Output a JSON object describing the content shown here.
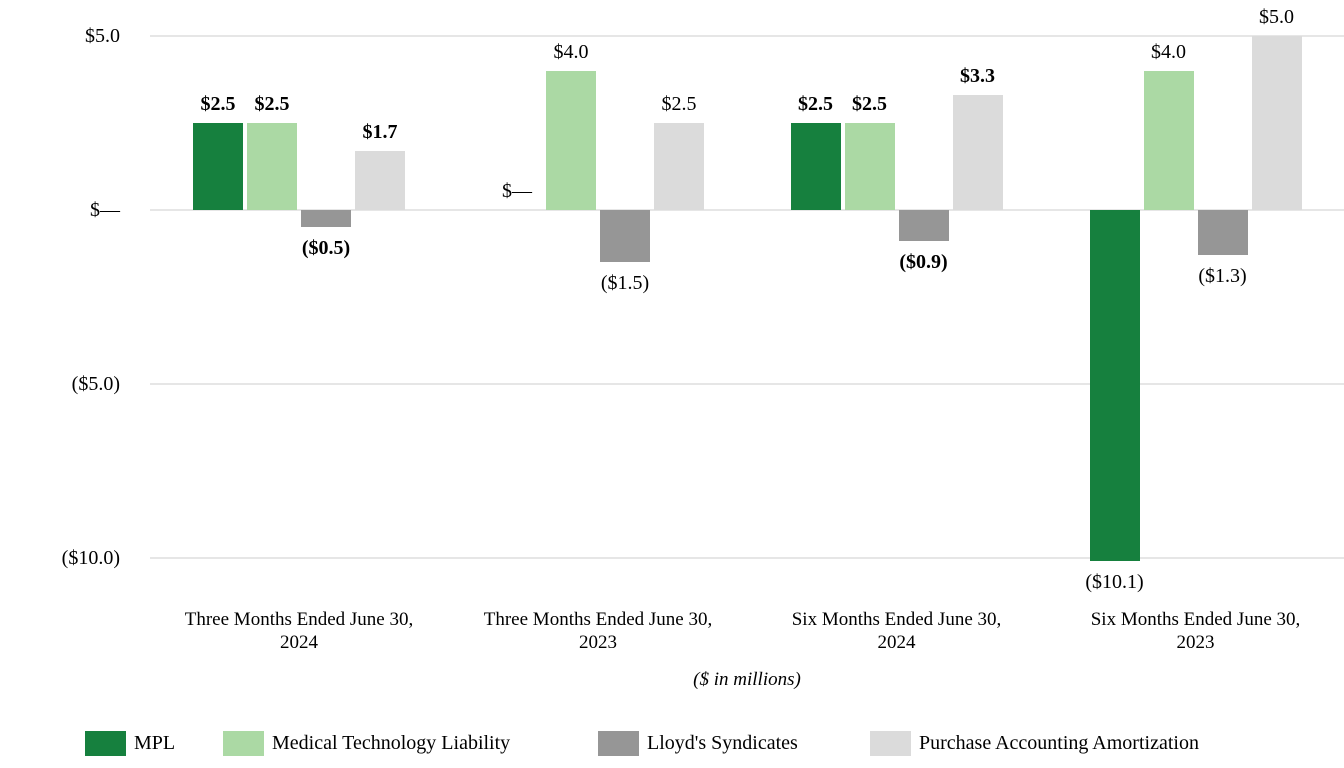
{
  "chart_data": {
    "type": "bar",
    "title": "",
    "caption": "($ in millions)",
    "categories": [
      {
        "line1": "Three Months Ended June 30,",
        "line2": "2024",
        "label_weight": "bold"
      },
      {
        "line1": "Three Months Ended June 30,",
        "line2": "2023",
        "label_weight": "normal"
      },
      {
        "line1": "Six Months Ended June 30,",
        "line2": "2024",
        "label_weight": "bold"
      },
      {
        "line1": "Six Months Ended June 30,",
        "line2": "2023",
        "label_weight": "normal"
      }
    ],
    "series": [
      {
        "name": "MPL",
        "color": "#16803E",
        "values": [
          2.5,
          0,
          2.5,
          -10.1
        ],
        "labels": [
          "$2.5",
          "$—",
          "$2.5",
          "($10.1)"
        ]
      },
      {
        "name": "Medical Technology Liability",
        "color": "#ABD9A4",
        "values": [
          2.5,
          4.0,
          2.5,
          4.0
        ],
        "labels": [
          "$2.5",
          "$4.0",
          "$2.5",
          "$4.0"
        ]
      },
      {
        "name": "Lloyd's Syndicates",
        "color": "#969696",
        "values": [
          -0.5,
          -1.5,
          -0.9,
          -1.3
        ],
        "labels": [
          "($0.5)",
          "($1.5)",
          "($0.9)",
          "($1.3)"
        ]
      },
      {
        "name": "Purchase Accounting Amortization",
        "color": "#DBDBDB",
        "values": [
          1.7,
          2.5,
          3.3,
          5.0
        ],
        "labels": [
          "$1.7",
          "$2.5",
          "$3.3",
          "$5.0"
        ]
      }
    ],
    "y_axis": {
      "ticks": [
        {
          "value": 5.0,
          "label": "$5.0"
        },
        {
          "value": 0,
          "label": "$—"
        },
        {
          "value": -5.0,
          "label": "($5.0)"
        },
        {
          "value": -10.0,
          "label": "($10.0)"
        }
      ]
    },
    "ylim": [
      -10.5,
      5.5
    ],
    "grid": true,
    "legend_position": "bottom",
    "gridline_color": "#E6E6E6",
    "text_color": "#000000",
    "background_color": "#FFFFFF"
  }
}
